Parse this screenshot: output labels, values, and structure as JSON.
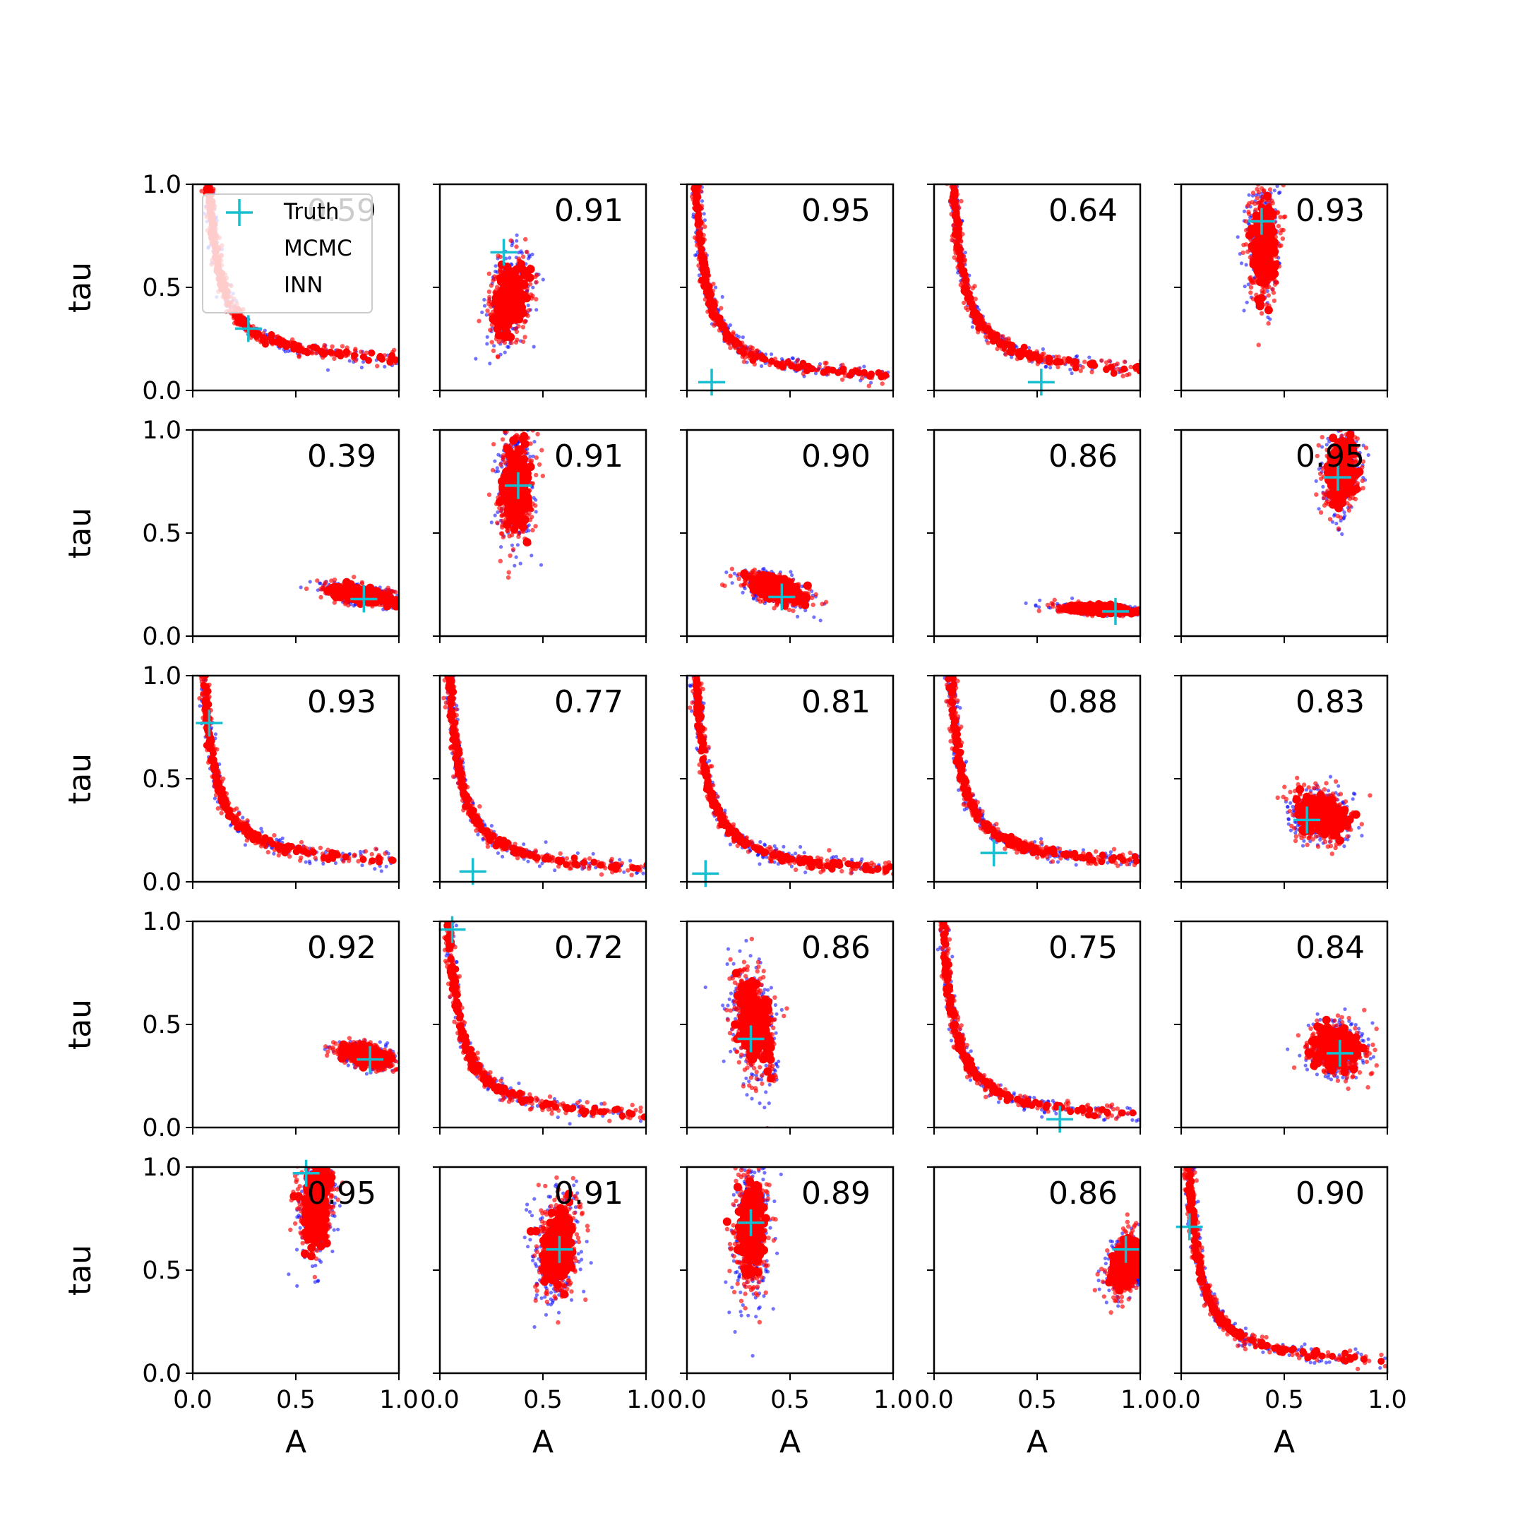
{
  "colors": {
    "truth": "#17becf",
    "mcmc": "#0000ff",
    "inn": "#ff0000"
  },
  "legend": {
    "location": "upper left of first panel",
    "entries": [
      "Truth",
      "MCMC",
      "INN"
    ]
  },
  "chart_data": {
    "type": "scatter",
    "layout": "5x5 grid of scatter panels",
    "xlabel": "A",
    "ylabel": "tau",
    "xlim": [
      0,
      1
    ],
    "ylim": [
      0,
      1
    ],
    "xticks": [
      "0.0",
      "0.5",
      "1.0"
    ],
    "yticks": [
      "0.0",
      "0.5",
      "1.0"
    ],
    "series_names": [
      "Truth",
      "MCMC",
      "INN"
    ],
    "panels": [
      {
        "row": 0,
        "col": 0,
        "correlation": "0.59",
        "truth": [
          0.27,
          0.3
        ],
        "shape": "curve",
        "params": [
          0.04,
          0.1,
          1.0
        ]
      },
      {
        "row": 0,
        "col": 1,
        "correlation": "0.91",
        "truth": [
          0.31,
          0.67
        ],
        "shape": "blob",
        "params": [
          0.34,
          0.45,
          0.05,
          0.1,
          0.3
        ]
      },
      {
        "row": 0,
        "col": 2,
        "correlation": "0.95",
        "truth": [
          0.12,
          0.04
        ],
        "shape": "curve",
        "params": [
          0.01,
          0.02,
          1.0
        ]
      },
      {
        "row": 0,
        "col": 3,
        "correlation": "0.64",
        "truth": [
          0.52,
          0.04
        ],
        "shape": "curve",
        "params": [
          0.06,
          0.05,
          1.0
        ]
      },
      {
        "row": 0,
        "col": 4,
        "correlation": "0.93",
        "truth": [
          0.39,
          0.82
        ],
        "shape": "blob",
        "params": [
          0.4,
          0.72,
          0.035,
          0.14,
          0.05
        ]
      },
      {
        "row": 1,
        "col": 0,
        "correlation": "0.39",
        "truth": [
          0.83,
          0.18
        ],
        "shape": "blob",
        "params": [
          0.82,
          0.2,
          0.09,
          0.025,
          -0.5
        ]
      },
      {
        "row": 1,
        "col": 1,
        "correlation": "0.91",
        "truth": [
          0.38,
          0.73
        ],
        "shape": "blob",
        "params": [
          0.37,
          0.72,
          0.04,
          0.13,
          0.1
        ]
      },
      {
        "row": 1,
        "col": 2,
        "correlation": "0.90",
        "truth": [
          0.46,
          0.19
        ],
        "shape": "blob",
        "params": [
          0.43,
          0.23,
          0.08,
          0.04,
          -0.55
        ]
      },
      {
        "row": 1,
        "col": 3,
        "correlation": "0.86",
        "truth": [
          0.88,
          0.12
        ],
        "shape": "blob",
        "params": [
          0.8,
          0.13,
          0.1,
          0.012,
          -0.4
        ]
      },
      {
        "row": 1,
        "col": 4,
        "correlation": "0.95",
        "truth": [
          0.76,
          0.77
        ],
        "shape": "blob",
        "params": [
          0.78,
          0.8,
          0.04,
          0.09,
          0.2
        ]
      },
      {
        "row": 2,
        "col": 0,
        "correlation": "0.93",
        "truth": [
          0.08,
          0.77
        ],
        "shape": "curve",
        "params": [
          0.02,
          0.05,
          1.0
        ]
      },
      {
        "row": 2,
        "col": 1,
        "correlation": "0.77",
        "truth": [
          0.16,
          0.05
        ],
        "shape": "curve",
        "params": [
          0.015,
          0.015,
          1.0
        ]
      },
      {
        "row": 2,
        "col": 2,
        "correlation": "0.81",
        "truth": [
          0.09,
          0.04
        ],
        "shape": "curve",
        "params": [
          0.012,
          0.012,
          1.0
        ]
      },
      {
        "row": 2,
        "col": 3,
        "correlation": "0.88",
        "truth": [
          0.29,
          0.14
        ],
        "shape": "curve",
        "params": [
          0.05,
          0.05,
          0.95
        ]
      },
      {
        "row": 2,
        "col": 4,
        "correlation": "0.83",
        "truth": [
          0.61,
          0.3
        ],
        "shape": "blob",
        "params": [
          0.68,
          0.32,
          0.07,
          0.06,
          -0.2
        ]
      },
      {
        "row": 3,
        "col": 0,
        "correlation": "0.92",
        "truth": [
          0.86,
          0.33
        ],
        "shape": "blob",
        "params": [
          0.84,
          0.35,
          0.07,
          0.03,
          -0.4
        ]
      },
      {
        "row": 3,
        "col": 1,
        "correlation": "0.72",
        "truth": [
          0.06,
          0.96
        ],
        "shape": "curve",
        "params": [
          0.012,
          0.012,
          1.0
        ]
      },
      {
        "row": 3,
        "col": 2,
        "correlation": "0.86",
        "truth": [
          0.31,
          0.43
        ],
        "shape": "blob",
        "params": [
          0.32,
          0.5,
          0.05,
          0.14,
          -0.35
        ]
      },
      {
        "row": 3,
        "col": 3,
        "correlation": "0.75",
        "truth": [
          0.61,
          0.04
        ],
        "shape": "curve",
        "params": [
          0.012,
          0.012,
          1.0
        ]
      },
      {
        "row": 3,
        "col": 4,
        "correlation": "0.84",
        "truth": [
          0.77,
          0.36
        ],
        "shape": "blob",
        "params": [
          0.75,
          0.38,
          0.07,
          0.06,
          -0.1
        ]
      },
      {
        "row": 4,
        "col": 0,
        "correlation": "0.95",
        "truth": [
          0.55,
          0.97
        ],
        "shape": "blob",
        "params": [
          0.6,
          0.83,
          0.04,
          0.12,
          0.2
        ]
      },
      {
        "row": 4,
        "col": 1,
        "correlation": "0.91",
        "truth": [
          0.58,
          0.6
        ],
        "shape": "blob",
        "params": [
          0.57,
          0.6,
          0.05,
          0.12,
          0.15
        ]
      },
      {
        "row": 4,
        "col": 2,
        "correlation": "0.89",
        "truth": [
          0.31,
          0.73
        ],
        "shape": "blob",
        "params": [
          0.31,
          0.7,
          0.04,
          0.16,
          0.1
        ]
      },
      {
        "row": 4,
        "col": 3,
        "correlation": "0.86",
        "truth": [
          0.93,
          0.6
        ],
        "shape": "blob",
        "params": [
          0.93,
          0.52,
          0.04,
          0.07,
          0.2
        ]
      },
      {
        "row": 4,
        "col": 4,
        "correlation": "0.90",
        "truth": [
          0.04,
          0.71
        ],
        "shape": "curve",
        "params": [
          0.006,
          0.01,
          1.0
        ]
      }
    ]
  }
}
